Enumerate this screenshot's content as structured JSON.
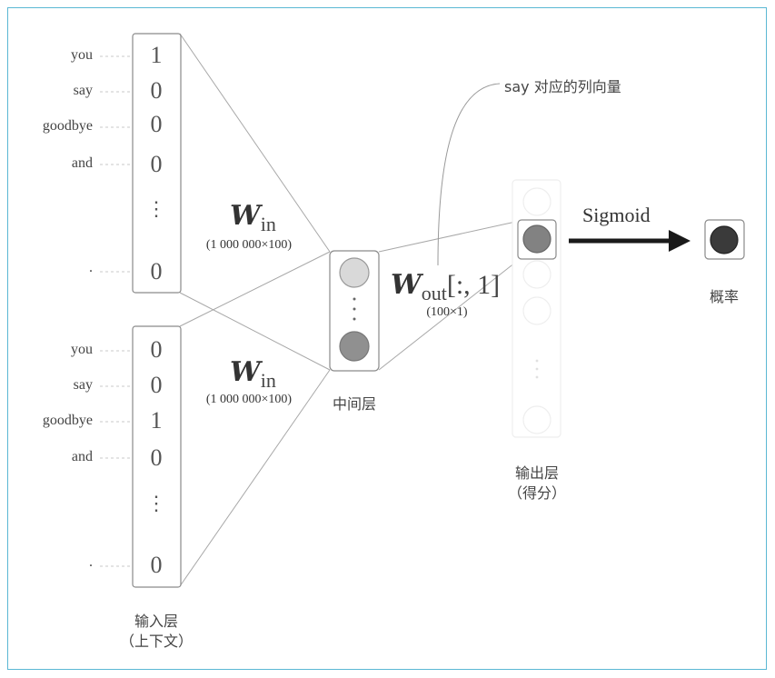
{
  "input_top": {
    "words": [
      "you",
      "say",
      "goodbye",
      "and",
      "."
    ],
    "values": [
      "1",
      "0",
      "0",
      "0",
      "0"
    ],
    "ellipsis": "⋮"
  },
  "input_bottom": {
    "words": [
      "you",
      "say",
      "goodbye",
      "and",
      "."
    ],
    "values": [
      "0",
      "0",
      "1",
      "0",
      "0"
    ],
    "ellipsis": "⋮"
  },
  "weights": {
    "w_symbol": "W",
    "w_in_sub": "in",
    "w_in_dim": "(1 000 000×100)",
    "w_out_sub": "out",
    "w_out_index": "[:, 1]",
    "w_out_dim": "(100×1)"
  },
  "layers": {
    "input_label": "输入层",
    "input_sub": "（上下文）",
    "hidden_label": "中间层",
    "output_label": "输出层",
    "output_sub": "（得分）",
    "prob_label": "概率"
  },
  "annotations": {
    "say_column": "say 对应的列向量",
    "sigmoid": "Sigmoid"
  },
  "colors": {
    "frame": "#5bb8d4",
    "line": "#999999",
    "neuron_light": "#d9d9d9",
    "neuron_mid": "#909090",
    "neuron_dark": "#3a3a3a",
    "arrow": "#1a1a1a"
  }
}
